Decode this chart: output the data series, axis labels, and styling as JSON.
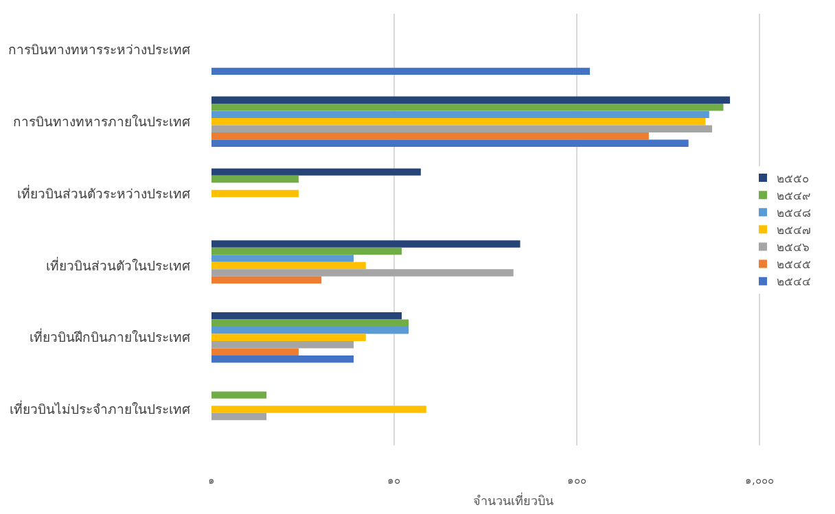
{
  "chart_data": {
    "type": "bar",
    "orientation": "horizontal",
    "log": "x",
    "xlabel": "จำนวนเที่ยวบิน",
    "categories": [
      "การบินทางทหารระหว่างประเทศ",
      "การบินทางทหารภายในประเทศ",
      "เที่ยวบินส่วนตัวระหว่างประเทศ",
      "เที่ยวบินส่วนตัวในประเทศ",
      "เที่ยวบินฝึกบินภายในประเทศ",
      "เที่ยวบินไม่ประจำภายในประเทศ"
    ],
    "series": [
      {
        "name": "๒๕๔๔",
        "color": "#4472c4",
        "values": [
          118,
          409,
          null,
          null,
          6,
          null
        ]
      },
      {
        "name": "๒๕๔๕",
        "color": "#ed7d31",
        "values": [
          null,
          248,
          null,
          4,
          3,
          null
        ]
      },
      {
        "name": "๒๕๔๖",
        "color": "#a5a5a5",
        "values": [
          null,
          551,
          null,
          45,
          6,
          2
        ]
      },
      {
        "name": "๒๕๔๗",
        "color": "#ffc000",
        "values": [
          null,
          507,
          3,
          7,
          7,
          15
        ]
      },
      {
        "name": "๒๕๔๘",
        "color": "#5b9bd5",
        "values": [
          null,
          531,
          null,
          6,
          12,
          null
        ]
      },
      {
        "name": "๒๕๔๙",
        "color": "#70ad47",
        "values": [
          null,
          635,
          3,
          11,
          12,
          2
        ]
      },
      {
        "name": "๒๕๕๐",
        "color": "#264478",
        "values": [
          null,
          690,
          14,
          49,
          11,
          null
        ]
      }
    ],
    "xlim": [
      1,
      2000
    ],
    "xticks": [
      {
        "value": 1,
        "label": "๑"
      },
      {
        "value": 10,
        "label": "๑๐"
      },
      {
        "value": 100,
        "label": "๑๐๐"
      },
      {
        "value": 1000,
        "label": "๑,๐๐๐"
      }
    ],
    "grid": "x",
    "legend": "right"
  }
}
